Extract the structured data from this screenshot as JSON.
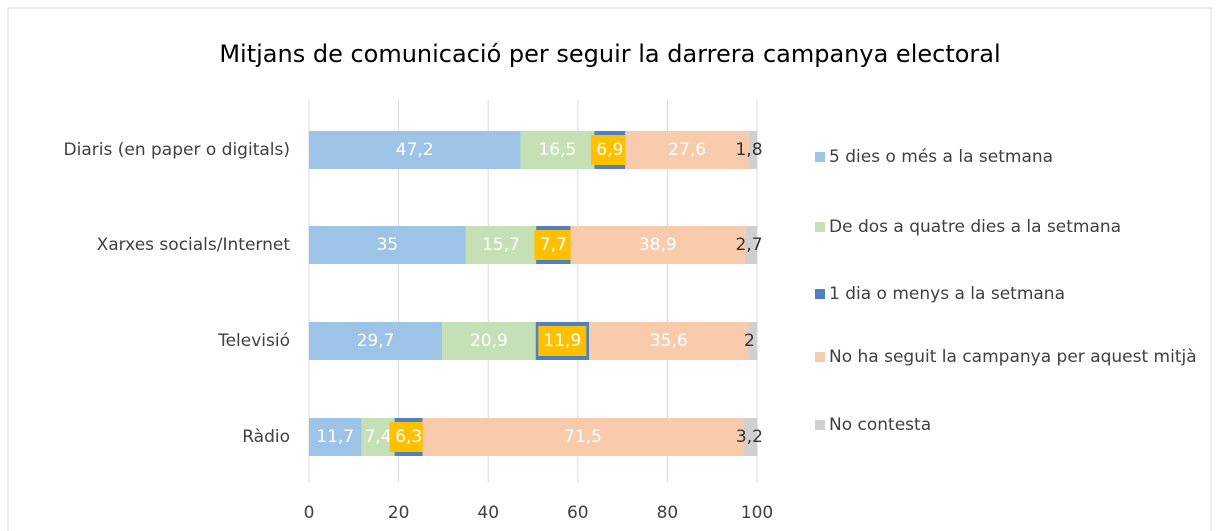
{
  "chart_data": {
    "type": "stacked_barh",
    "title": "Mitjans de comunicació per seguir la darrera campanya electoral",
    "categories": [
      "Diaris (en paper o digitals)",
      "Xarxes socials/Internet",
      "Televisió",
      "Ràdio"
    ],
    "series": [
      {
        "name": "5 dies o més a la setmana",
        "color": "#9dc3e6",
        "label_color": "#ffffff",
        "values": [
          47.2,
          35,
          29.7,
          11.7
        ],
        "value_labels": [
          "47,2",
          "35",
          "29,7",
          "11,7"
        ]
      },
      {
        "name": "De dos a quatre dies a la setmana",
        "color": "#c5e0b4",
        "label_color": "#ffffff",
        "values": [
          16.5,
          15.7,
          20.9,
          7.4
        ],
        "value_labels": [
          "16,5",
          "15,7",
          "20,9",
          "7,4"
        ]
      },
      {
        "name": "1 dia o menys a la setmana",
        "color": "#4f81bd",
        "label_color": "#ffffff",
        "label_background": "#ffc000",
        "values": [
          6.9,
          7.7,
          11.9,
          6.3
        ],
        "value_labels": [
          "6,9",
          "7,7",
          "11,9",
          "6,3"
        ]
      },
      {
        "name": "No ha seguit la campanya per aquest mitjà",
        "color": "#f8cbad",
        "label_color": "#ffffff",
        "values": [
          27.6,
          38.9,
          35.6,
          71.5
        ],
        "value_labels": [
          "27,6",
          "38,9",
          "35,6",
          "71,5"
        ]
      },
      {
        "name": "No contesta",
        "color": "#d0d0d0",
        "label_color": "#333333",
        "values": [
          1.8,
          2.7,
          2,
          3.2
        ],
        "value_labels": [
          "1,8",
          "2,7",
          "2",
          "3,2"
        ]
      }
    ],
    "xlim": [
      0,
      100
    ],
    "xticks": [
      0,
      20,
      40,
      60,
      80,
      100
    ],
    "grid": true,
    "legend": "right"
  }
}
